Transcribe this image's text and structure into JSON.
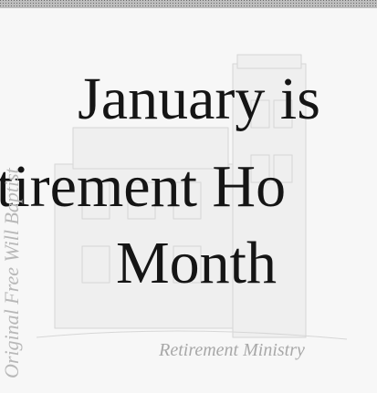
{
  "document": {
    "heading_lines": [
      "January is",
      "tirement Ho",
      "Month"
    ],
    "caption": "Retirement Ministry",
    "side_text": "Original Free Will Baptist"
  }
}
